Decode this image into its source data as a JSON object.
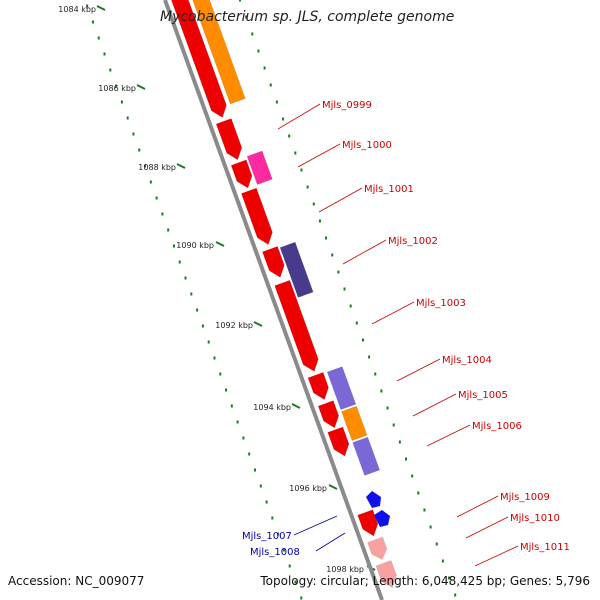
{
  "title": "Mycobacterium sp. JLS, complete genome",
  "accession": "Accession: NC_009077",
  "summary": "Topology: circular; Length: 6,048,425 bp; Genes: 5,796",
  "colors": {
    "backbone": "#8a8a8a",
    "tick": "#1e7a1e",
    "red": "#ee0000",
    "orange": "#ff8c00",
    "magenta": "#ff2aa0",
    "darkpurple": "#4a3a8c",
    "lavender": "#7b68d6",
    "blue": "#1010ee",
    "pink": "#f9a0a0",
    "label_red": "#cc0000",
    "label_blue": "#0000aa"
  },
  "scale": {
    "ticks": [
      "1084 kbp",
      "1086 kbp",
      "1088 kbp",
      "1090 kbp",
      "1092 kbp",
      "1094 kbp",
      "1096 kbp",
      "1098 kbp"
    ]
  },
  "gene_labels_forward": [
    "Mjls_0999",
    "Mjls_1000",
    "Mjls_1001",
    "Mjls_1002",
    "Mjls_1003",
    "Mjls_1004",
    "Mjls_1005",
    "Mjls_1006",
    "Mjls_1009",
    "Mjls_1010",
    "Mjls_1011"
  ],
  "gene_labels_reverse": [
    "Mjls_1007",
    "Mjls_1008"
  ]
}
